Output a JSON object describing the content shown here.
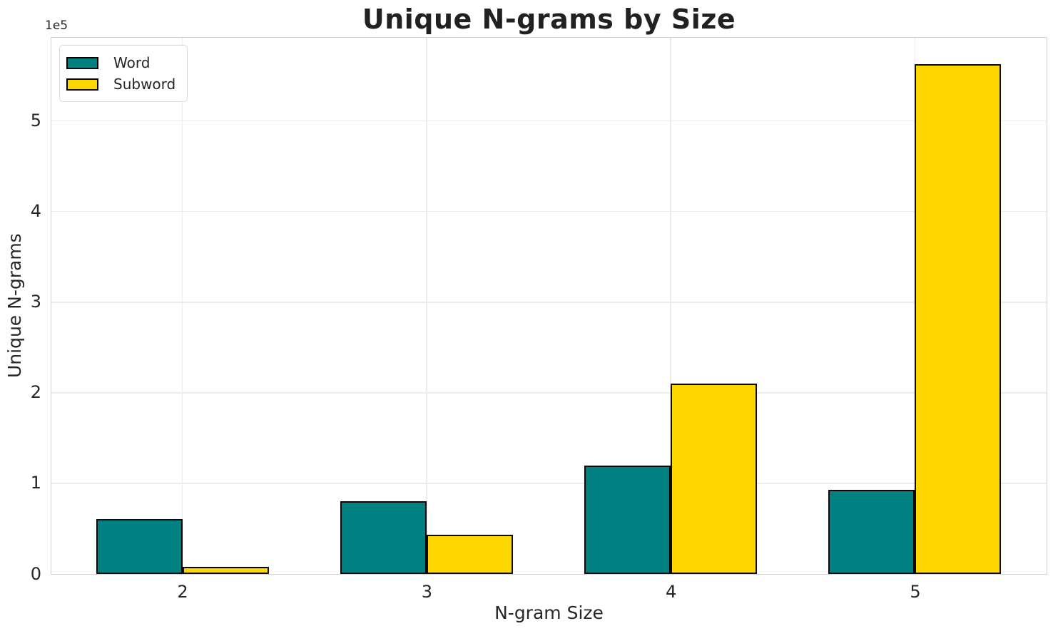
{
  "chart_data": {
    "type": "bar",
    "title": "Unique N-grams by Size",
    "xlabel": "N-gram Size",
    "ylabel": "Unique N-grams",
    "y_offset_text": "1e5",
    "categories": [
      "2",
      "3",
      "4",
      "5"
    ],
    "series": [
      {
        "name": "Word",
        "color": "#008080",
        "values": [
          61000,
          80000,
          120000,
          93000
        ]
      },
      {
        "name": "Subword",
        "color": "#FFD700",
        "values": [
          8000,
          43000,
          210000,
          563000
        ]
      }
    ],
    "bar_edge_color": "#0a0a0a",
    "ylim": [
      0,
      591000
    ],
    "ytick_labels": [
      "0",
      "1",
      "2",
      "3",
      "4",
      "5"
    ],
    "ytick_values": [
      0,
      100000,
      200000,
      300000,
      400000,
      500000
    ],
    "grid": true,
    "legend_position": "upper left",
    "grid_color": "#ececec",
    "spine_color": "#d2d2d2",
    "text_color": "#262626"
  }
}
